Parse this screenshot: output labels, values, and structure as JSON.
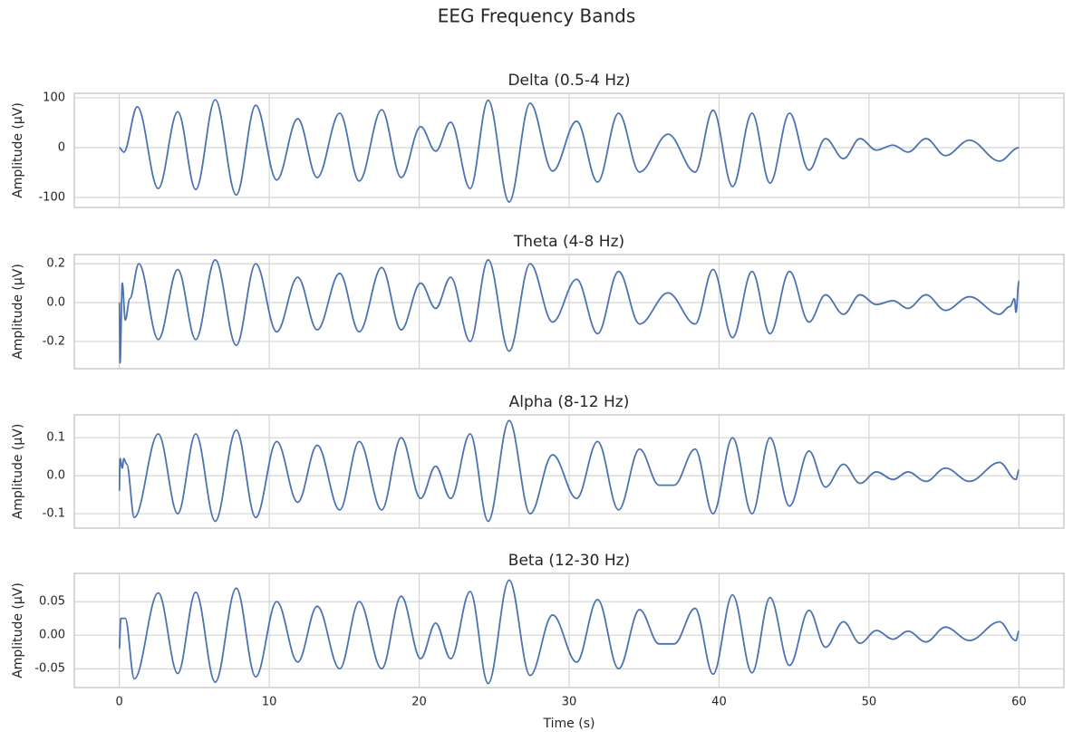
{
  "title": "EEG Frequency Bands",
  "chart_data": [
    {
      "type": "line",
      "title": "Delta (0.5-4 Hz)",
      "ylabel": "Amplitude (µV)",
      "color": "#4c72b0",
      "grid": true,
      "xlim": [
        -3,
        63
      ],
      "xticks": [
        0,
        10,
        20,
        30,
        40,
        50,
        60
      ],
      "ylim": [
        -120,
        109
      ],
      "yticks": [
        -100,
        0,
        100
      ],
      "x": [
        0,
        0.3,
        1.2,
        2.6,
        3.9,
        5.1,
        6.4,
        7.8,
        9.1,
        10.5,
        11.9,
        13.2,
        14.7,
        16.0,
        17.5,
        18.8,
        20.1,
        21.1,
        22.1,
        23.4,
        24.6,
        26.0,
        27.4,
        28.9,
        30.5,
        31.9,
        33.3,
        34.7,
        36.6,
        38.4,
        39.6,
        40.9,
        42.2,
        43.4,
        44.7,
        46.0,
        47.1,
        48.3,
        49.4,
        50.5,
        51.6,
        52.6,
        53.8,
        55.1,
        56.7,
        58.7,
        60
      ],
      "values": [
        0,
        -9,
        82,
        -82,
        72,
        -84,
        96,
        -95,
        85,
        -65,
        58,
        -60,
        69,
        -67,
        76,
        -60,
        42,
        -7,
        51,
        -82,
        95,
        -109,
        89,
        -47,
        53,
        -69,
        69,
        -49,
        27,
        -49,
        75,
        -78,
        69,
        -71,
        69,
        -45,
        18,
        -22,
        18,
        -5,
        5,
        -9,
        18,
        -16,
        15,
        -27,
        0
      ]
    },
    {
      "type": "line",
      "title": "Theta (4-8 Hz)",
      "ylabel": "Amplitude (µV)",
      "color": "#4c72b0",
      "grid": true,
      "xlim": [
        -3,
        63
      ],
      "xticks": [
        0,
        10,
        20,
        30,
        40,
        50,
        60
      ],
      "ylim": [
        -0.34,
        0.247
      ],
      "yticks": [
        -0.2,
        {
          "value": 0,
          "label": "0.0"
        },
        0.2
      ],
      "x": [
        0,
        0.05,
        0.2,
        0.4,
        0.7,
        1.3,
        2.6,
        3.9,
        5.1,
        6.4,
        7.8,
        9.1,
        10.5,
        11.9,
        13.2,
        14.7,
        16.0,
        17.5,
        18.8,
        20.1,
        21.1,
        22.1,
        23.4,
        24.6,
        26.0,
        27.4,
        28.9,
        30.5,
        31.9,
        33.3,
        34.7,
        36.6,
        38.4,
        39.6,
        40.9,
        42.2,
        43.4,
        44.7,
        46.0,
        47.1,
        48.3,
        49.4,
        50.5,
        51.6,
        52.6,
        53.8,
        55.1,
        56.7,
        58.7,
        59.4,
        59.7,
        59.8,
        60
      ],
      "values": [
        0,
        -0.31,
        0.1,
        -0.09,
        0.02,
        0.2,
        -0.19,
        0.17,
        -0.19,
        0.22,
        -0.22,
        0.2,
        -0.15,
        0.13,
        -0.14,
        0.15,
        -0.15,
        0.18,
        -0.14,
        0.1,
        -0.03,
        0.13,
        -0.2,
        0.22,
        -0.25,
        0.2,
        -0.1,
        0.12,
        -0.16,
        0.16,
        -0.11,
        0.05,
        -0.11,
        0.17,
        -0.18,
        0.16,
        -0.16,
        0.16,
        -0.1,
        0.04,
        -0.06,
        0.04,
        -0.01,
        0.01,
        -0.03,
        0.04,
        -0.04,
        0.03,
        -0.06,
        -0.02,
        0.02,
        -0.05,
        0.11
      ]
    },
    {
      "type": "line",
      "title": "Alpha (8-12 Hz)",
      "ylabel": "Amplitude (µV)",
      "color": "#4c72b0",
      "grid": true,
      "xlim": [
        -3,
        63
      ],
      "xticks": [
        0,
        10,
        20,
        30,
        40,
        50,
        60
      ],
      "ylim": [
        -0.138,
        0.16
      ],
      "yticks": [
        -0.1,
        {
          "value": 0,
          "label": "0.0"
        },
        0.1
      ],
      "x": [
        0,
        0.05,
        0.2,
        0.3,
        0.5,
        1.0,
        2.6,
        3.9,
        5.1,
        6.4,
        7.8,
        9.1,
        10.5,
        11.9,
        13.2,
        14.7,
        16.0,
        17.5,
        18.8,
        20.1,
        21.1,
        22.1,
        23.4,
        24.6,
        26.0,
        27.4,
        28.9,
        30.5,
        31.9,
        33.3,
        34.7,
        36.0,
        37.0,
        38.4,
        39.6,
        40.9,
        42.2,
        43.4,
        44.7,
        46.0,
        47.1,
        48.3,
        49.4,
        50.5,
        51.6,
        52.6,
        53.8,
        55.1,
        56.7,
        58.7,
        59.8,
        60
      ],
      "values": [
        -0.04,
        0.045,
        0.02,
        0.045,
        0.03,
        -0.11,
        0.11,
        -0.1,
        0.11,
        -0.12,
        0.12,
        -0.11,
        0.09,
        -0.07,
        0.08,
        -0.09,
        0.09,
        -0.09,
        0.1,
        -0.06,
        0.025,
        -0.06,
        0.11,
        -0.12,
        0.145,
        -0.1,
        0.055,
        -0.06,
        0.09,
        -0.09,
        0.07,
        -0.025,
        -0.025,
        0.07,
        -0.1,
        0.1,
        -0.1,
        0.1,
        -0.08,
        0.065,
        -0.03,
        0.03,
        -0.02,
        0.01,
        -0.01,
        0.01,
        -0.015,
        0.02,
        -0.015,
        0.035,
        -0.01,
        0.015
      ]
    },
    {
      "type": "line",
      "title": "Beta (12-30 Hz)",
      "ylabel": "Amplitude (µV)",
      "xlabel": "Time (s)",
      "color": "#4c72b0",
      "grid": true,
      "xlim": [
        -3,
        63
      ],
      "xticks": [
        0,
        10,
        20,
        30,
        40,
        50,
        60
      ],
      "ylim": [
        -0.078,
        0.092
      ],
      "yticks": [
        -0.05,
        {
          "value": 0,
          "label": "0.00"
        },
        0.05
      ],
      "x": [
        0,
        0.1,
        0.4,
        1.0,
        2.6,
        3.9,
        5.1,
        6.4,
        7.8,
        9.1,
        10.5,
        11.9,
        13.2,
        14.7,
        16.0,
        17.5,
        18.8,
        20.1,
        21.1,
        22.1,
        23.4,
        24.6,
        26.0,
        27.4,
        28.9,
        30.5,
        31.9,
        33.3,
        34.7,
        36.0,
        37.0,
        38.4,
        39.6,
        40.9,
        42.2,
        43.4,
        44.7,
        46.0,
        47.1,
        48.3,
        49.4,
        50.5,
        51.6,
        52.6,
        53.8,
        55.1,
        56.7,
        58.7,
        59.8,
        60
      ],
      "values": [
        -0.02,
        0.025,
        0.025,
        -0.065,
        0.063,
        -0.057,
        0.064,
        -0.07,
        0.07,
        -0.062,
        0.05,
        -0.04,
        0.043,
        -0.05,
        0.05,
        -0.05,
        0.058,
        -0.035,
        0.018,
        -0.035,
        0.065,
        -0.072,
        0.082,
        -0.06,
        0.03,
        -0.04,
        0.053,
        -0.05,
        0.038,
        -0.013,
        -0.013,
        0.04,
        -0.058,
        0.06,
        -0.056,
        0.056,
        -0.045,
        0.037,
        -0.018,
        0.02,
        -0.012,
        0.007,
        -0.006,
        0.006,
        -0.01,
        0.012,
        -0.008,
        0.02,
        -0.008,
        0.006
      ]
    }
  ]
}
